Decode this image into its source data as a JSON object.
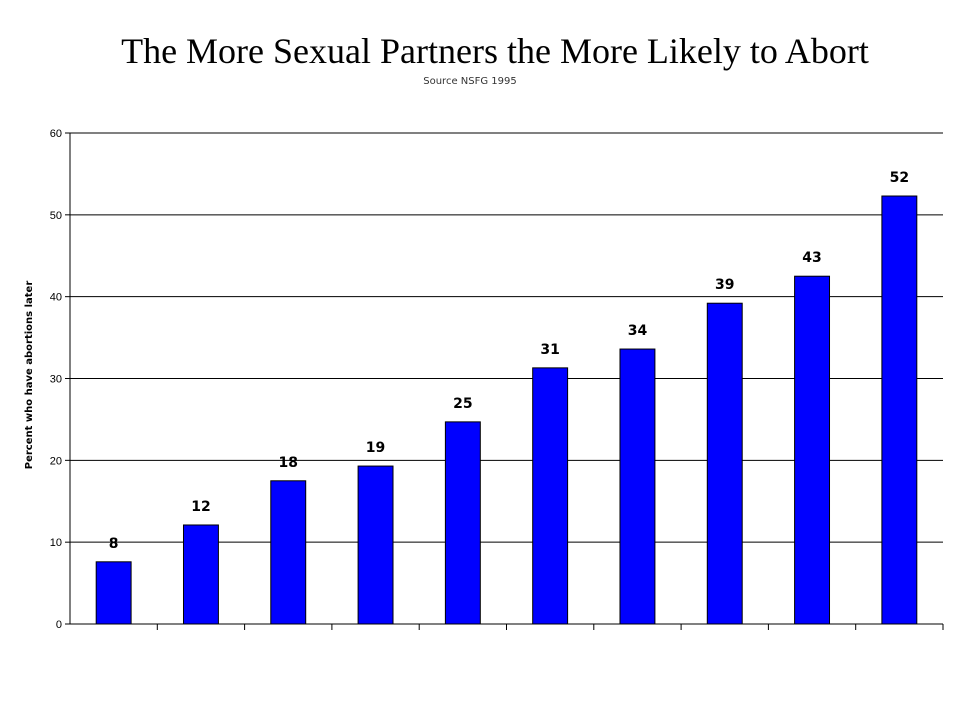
{
  "chart_data": {
    "type": "bar",
    "title": "The More Sexual Partners the More Likely to Abort",
    "subtitle": "Source NSFG 1995",
    "xlabel": "",
    "ylabel": "Percent who have abortions later",
    "ylim": [
      0,
      60
    ],
    "yticks": [
      "0",
      "10",
      "20",
      "30",
      "40",
      "50",
      "60"
    ],
    "grid": true,
    "bar_color": "#0000FF",
    "values": [
      7.6,
      12.1,
      17.5,
      19.3,
      24.7,
      31.3,
      33.6,
      39.2,
      42.5,
      52.3
    ],
    "data_labels": [
      "8",
      "12",
      "18",
      "19",
      "25",
      "31",
      "34",
      "39",
      "43",
      "52"
    ]
  }
}
